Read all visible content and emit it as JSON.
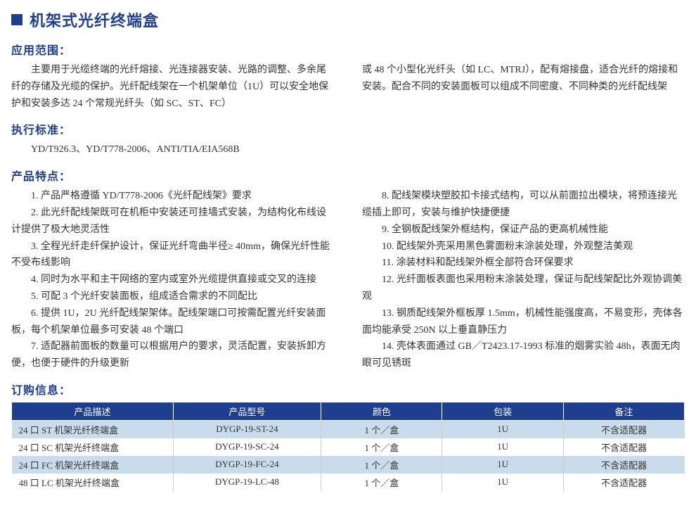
{
  "title": "机架式光纤终端盒",
  "sections": {
    "scope_heading": "应用范围：",
    "scope_left": "　　主要用于光缆终端的光纤熔接、光连接器安装、光路的调整、多余尾纤的存储及光缆的保护。光纤配线架在一个机架单位（1U）可以安全地保护和安装多达 24 个常规光纤头（如 SC、ST、FC）",
    "scope_right": "或 48 个小型化光纤头（如 LC、MTRJ），配有熔接盘，适合光纤的熔接和安装。配合不同的安装面板可以组成不同密度、不同种类的光纤配线架",
    "standard_heading": "执行标准：",
    "standard_text": "YD/T926.3、YD/T778-2006、ANTI/TIA/EIA568B",
    "features_heading": "产品特点：",
    "features_left": "　　1. 产品严格遵循 YD/T778-2006《光纤配线架》要求\n　　2. 此光纤配线架既可在机柜中安装还可挂墙式安装，为结构化布线设计提供了极大地灵活性\n　　3. 全程光纤走纤保护设计，保证光纤弯曲半径≥ 40mm，确保光纤性能不受布线影响\n　　4. 同时为水平和主干网络的室内或室外光缆提供直接或交叉的连接\n　　5. 可配 3 个光纤安装面板，组成适合需求的不同配比\n　　6. 提供 1U，2U 光纤配线架架体。配线架端口可按需配置光纤安装面板，每个机架单位最多可安装 48 个端口\n　　7. 适配器前面板的数量可以根据用户的要求，灵活配置，安装拆卸方便，也便于硬件的升级更新",
    "features_right": "　　8. 配线架模块塑胶扣卡接式结构，可以从前面拉出模块，将预连接光缆插上即可，安装与维护快捷便捷\n　　9. 全钢板配线架外框结构，保证产品的更高机械性能\n　　10. 配线架外壳采用黑色雾面粉末涂装处理，外观整洁美观\n　　11. 涂装材料和配线架外框全部符合环保要求\n　　12. 光纤面板表面也采用粉末涂装处理，保证与配线架配比外观协调美观\n　　13. 钢质配线架外框板厚 1.5mm，机械性能强度高，不易变形，壳体各面均能承受 250N 以上垂直静压力\n　　14. 壳体表面通过 GB／T2423.17-1993 标准的烟雾实验 48h，表面无肉眼可见锈斑",
    "order_heading": "订购信息："
  },
  "table": {
    "headers": [
      "产品描述",
      "产品型号",
      "颜色",
      "包装",
      "备注"
    ],
    "rows": [
      [
        "24 口 ST 机架光纤终端盒",
        "DYGP-19-ST-24",
        "1 个／盒",
        "1U",
        "不含适配器"
      ],
      [
        "24 口 SC 机架光纤终端盒",
        "DYGP-19-SC-24",
        "1 个／盒",
        "1U",
        "不含适配器"
      ],
      [
        "24 口 FC 机架光纤终端盒",
        "DYGP-19-FC-24",
        "1 个／盒",
        "1U",
        "不含适配器"
      ],
      [
        "48 口 LC 机架光纤终端盒",
        "DYGP-19-LC-48",
        "1 个／盒",
        "1U",
        "不含适配器"
      ]
    ],
    "alt_row_color": "#c8dceb",
    "header_bg": "#1e3f8f"
  },
  "colors": {
    "brand": "#1e3f8f",
    "text": "#333333",
    "background": "#ffffff"
  }
}
